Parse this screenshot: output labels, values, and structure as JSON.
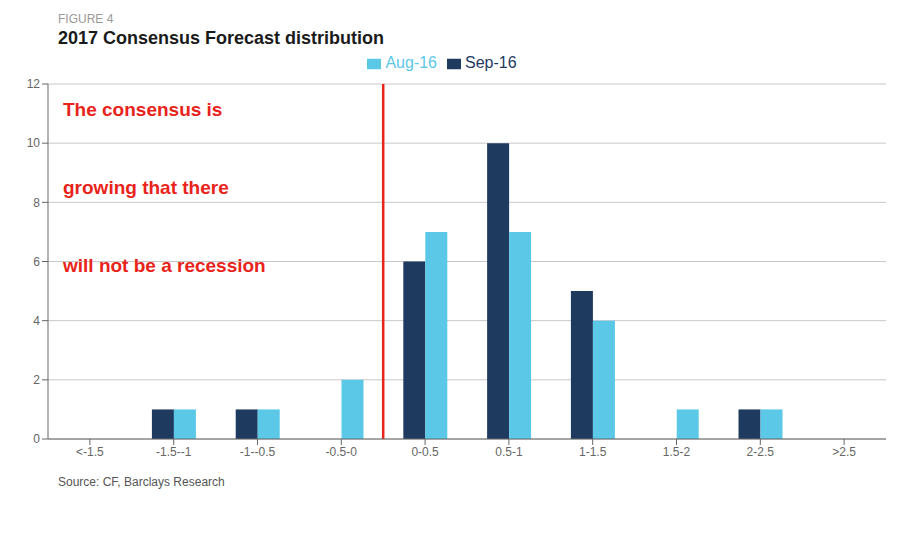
{
  "chart_data": {
    "type": "bar",
    "figure_label": "FIGURE 4",
    "title": "2017 Consensus Forecast distribution",
    "categories": [
      "<-1.5",
      "-1.5--1",
      "-1--0.5",
      "-0.5-0",
      "0-0.5",
      "0.5-1",
      "1-1.5",
      "1.5-2",
      "2-2.5",
      ">2.5"
    ],
    "series": [
      {
        "name": "Sep-16",
        "color": "#1e3a5f",
        "values": [
          0,
          1,
          1,
          0,
          6,
          10,
          5,
          0,
          1,
          0
        ]
      },
      {
        "name": "Aug-16",
        "color": "#5bc8e8",
        "values": [
          0,
          1,
          1,
          2,
          7,
          7,
          4,
          1,
          1,
          0
        ]
      }
    ],
    "ylim": [
      0,
      12
    ],
    "yticks": [
      0,
      2,
      4,
      6,
      8,
      10,
      12
    ],
    "grid": true,
    "grid_color": "#c8c8c8",
    "legend": "top",
    "reference_line": {
      "before": "0-0.5",
      "color": "#e8231a"
    },
    "annotations": [
      {
        "text": "The consensus is",
        "color": "#e8231a"
      },
      {
        "text": "growing that there",
        "color": "#e8231a"
      },
      {
        "text": "will not be a recession",
        "color": "#e8231a"
      }
    ],
    "source": "Source: CF, Barclays Research",
    "background_color": "#ffffff"
  }
}
